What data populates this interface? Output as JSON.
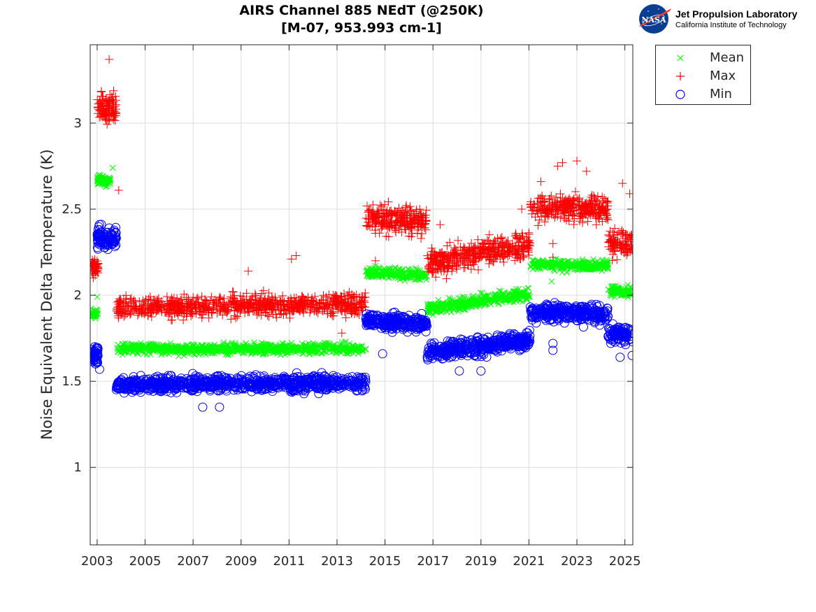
{
  "logo": {
    "agency": "NASA",
    "name": "Jet Propulsion Laboratory",
    "subtitle": "California Institute of Technology"
  },
  "chart_data": {
    "type": "scatter",
    "title": [
      "AIRS Channel 885 NEdT (@250K)",
      "[M-07, 953.993 cm-1]"
    ],
    "xlabel": "",
    "ylabel": "Noise Equivalent Delta Temperature (K)",
    "xlim": [
      2002.71,
      2025.33
    ],
    "ylim": [
      0.55,
      3.455
    ],
    "xticks": [
      2003,
      2005,
      2007,
      2009,
      2011,
      2013,
      2015,
      2017,
      2019,
      2021,
      2023,
      2025
    ],
    "xtick_labels": [
      "2003",
      "2005",
      "2007",
      "2009",
      "2011",
      "2013",
      "2015",
      "2017",
      "2019",
      "2021",
      "2023",
      "2025"
    ],
    "yticks": [
      1,
      1.5,
      2,
      2.5,
      3
    ],
    "ytick_labels": [
      "1",
      "1.5",
      "2",
      "2.5",
      "3"
    ],
    "grid": true,
    "legend": {
      "placement": "outside-top-right",
      "entries": [
        "Mean",
        "Max",
        "Min"
      ]
    },
    "series": [
      {
        "name": "Mean",
        "marker": "x",
        "color": "#00ff00",
        "segments": [
          {
            "x0": 2002.75,
            "x1": 2003.05,
            "y0": 1.89,
            "y1": 1.89,
            "spread": 0.025,
            "n": 40
          },
          {
            "x0": 2003.0,
            "x1": 2003.55,
            "y0": 2.67,
            "y1": 2.66,
            "spread": 0.025,
            "n": 70
          },
          {
            "x0": 2003.8,
            "x1": 2014.2,
            "y0": 1.69,
            "y1": 1.69,
            "spread": 0.025,
            "n": 800
          },
          {
            "x0": 2014.2,
            "x1": 2016.75,
            "y0": 2.13,
            "y1": 2.12,
            "spread": 0.025,
            "n": 220
          },
          {
            "x0": 2016.75,
            "x1": 2021.05,
            "y0": 1.92,
            "y1": 2.01,
            "spread": 0.03,
            "n": 380
          },
          {
            "x0": 2021.05,
            "x1": 2024.3,
            "y0": 2.18,
            "y1": 2.17,
            "spread": 0.025,
            "n": 280
          },
          {
            "x0": 2024.3,
            "x1": 2025.3,
            "y0": 2.02,
            "y1": 2.02,
            "spread": 0.025,
            "n": 90
          }
        ],
        "outliers": [
          [
            2003.0,
            1.99
          ],
          [
            2003.65,
            2.74
          ],
          [
            2021.95,
            2.08
          ]
        ]
      },
      {
        "name": "Max",
        "marker": "+",
        "color": "#ff0000",
        "segments": [
          {
            "x0": 2002.75,
            "x1": 2003.05,
            "y0": 2.16,
            "y1": 2.16,
            "spread": 0.05,
            "n": 50
          },
          {
            "x0": 2003.0,
            "x1": 2003.8,
            "y0": 3.08,
            "y1": 3.08,
            "spread": 0.08,
            "n": 110
          },
          {
            "x0": 2003.8,
            "x1": 2014.2,
            "y0": 1.93,
            "y1": 1.95,
            "spread": 0.05,
            "n": 900
          },
          {
            "x0": 2014.2,
            "x1": 2016.75,
            "y0": 2.45,
            "y1": 2.43,
            "spread": 0.06,
            "n": 260
          },
          {
            "x0": 2016.75,
            "x1": 2021.05,
            "y0": 2.18,
            "y1": 2.3,
            "spread": 0.06,
            "n": 420
          },
          {
            "x0": 2021.05,
            "x1": 2024.3,
            "y0": 2.51,
            "y1": 2.5,
            "spread": 0.06,
            "n": 320
          },
          {
            "x0": 2024.3,
            "x1": 2025.3,
            "y0": 2.3,
            "y1": 2.3,
            "spread": 0.06,
            "n": 100
          }
        ],
        "outliers": [
          [
            2003.5,
            3.37
          ],
          [
            2003.9,
            2.61
          ],
          [
            2009.3,
            2.14
          ],
          [
            2011.3,
            2.23
          ],
          [
            2011.1,
            2.21
          ],
          [
            2013.2,
            1.78
          ],
          [
            2014.6,
            2.2
          ],
          [
            2017.3,
            2.41
          ],
          [
            2020.7,
            2.5
          ],
          [
            2022.4,
            2.77
          ],
          [
            2022.2,
            2.75
          ],
          [
            2023.0,
            2.78
          ],
          [
            2023.4,
            2.72
          ],
          [
            2024.9,
            2.65
          ],
          [
            2021.5,
            2.66
          ],
          [
            2022.0,
            2.3
          ],
          [
            2022.0,
            2.22
          ],
          [
            2025.2,
            2.59
          ]
        ]
      },
      {
        "name": "Min",
        "marker": "o",
        "color": "#0000ff",
        "segments": [
          {
            "x0": 2002.75,
            "x1": 2003.05,
            "y0": 1.65,
            "y1": 1.65,
            "spread": 0.04,
            "n": 50
          },
          {
            "x0": 2003.0,
            "x1": 2003.8,
            "y0": 2.33,
            "y1": 2.33,
            "spread": 0.05,
            "n": 100
          },
          {
            "x0": 2003.8,
            "x1": 2014.2,
            "y0": 1.48,
            "y1": 1.49,
            "spread": 0.035,
            "n": 900
          },
          {
            "x0": 2014.2,
            "x1": 2016.75,
            "y0": 1.85,
            "y1": 1.84,
            "spread": 0.04,
            "n": 250
          },
          {
            "x0": 2016.75,
            "x1": 2021.05,
            "y0": 1.67,
            "y1": 1.74,
            "spread": 0.04,
            "n": 420
          },
          {
            "x0": 2021.05,
            "x1": 2024.3,
            "y0": 1.9,
            "y1": 1.89,
            "spread": 0.04,
            "n": 320
          },
          {
            "x0": 2024.3,
            "x1": 2025.3,
            "y0": 1.77,
            "y1": 1.77,
            "spread": 0.04,
            "n": 100
          }
        ],
        "outliers": [
          [
            2007.4,
            1.35
          ],
          [
            2008.1,
            1.35
          ],
          [
            2014.9,
            1.66
          ],
          [
            2018.1,
            1.56
          ],
          [
            2019.0,
            1.56
          ],
          [
            2022.0,
            1.68
          ],
          [
            2022.0,
            1.72
          ],
          [
            2003.1,
            1.57
          ],
          [
            2025.3,
            1.65
          ],
          [
            2024.8,
            1.64
          ]
        ]
      }
    ]
  }
}
